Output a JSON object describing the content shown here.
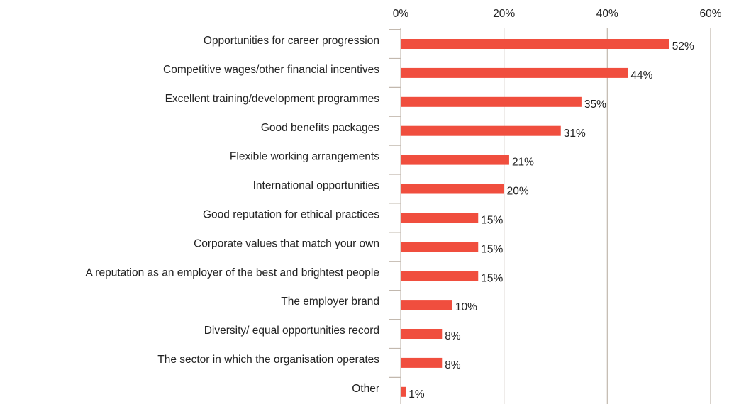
{
  "chart_data": {
    "type": "barh",
    "categories": [
      "Opportunities for career progression",
      "Competitive wages/other financial incentives",
      "Excellent training/development programmes",
      "Good benefits packages",
      "Flexible working arrangements",
      "International opportunities",
      "Good reputation for ethical practices",
      "Corporate values that match your own",
      "A reputation as an employer of the best and brightest people",
      "The employer brand",
      "Diversity/ equal opportunities record",
      "The sector in which the organisation operates",
      "Other"
    ],
    "values": [
      52,
      44,
      35,
      31,
      21,
      20,
      15,
      15,
      15,
      10,
      8,
      8,
      1
    ],
    "value_labels": [
      "52%",
      "44%",
      "35%",
      "31%",
      "21%",
      "20%",
      "15%",
      "15%",
      "15%",
      "10%",
      "8%",
      "8%",
      "1%"
    ],
    "color": "#f04e3e",
    "xlim": [
      0,
      65
    ],
    "xticks": [
      {
        "value": 0,
        "label": "0%"
      },
      {
        "value": 20,
        "label": "20%"
      },
      {
        "value": 40,
        "label": "40%"
      },
      {
        "value": 60,
        "label": "60%"
      }
    ],
    "grid": true
  }
}
